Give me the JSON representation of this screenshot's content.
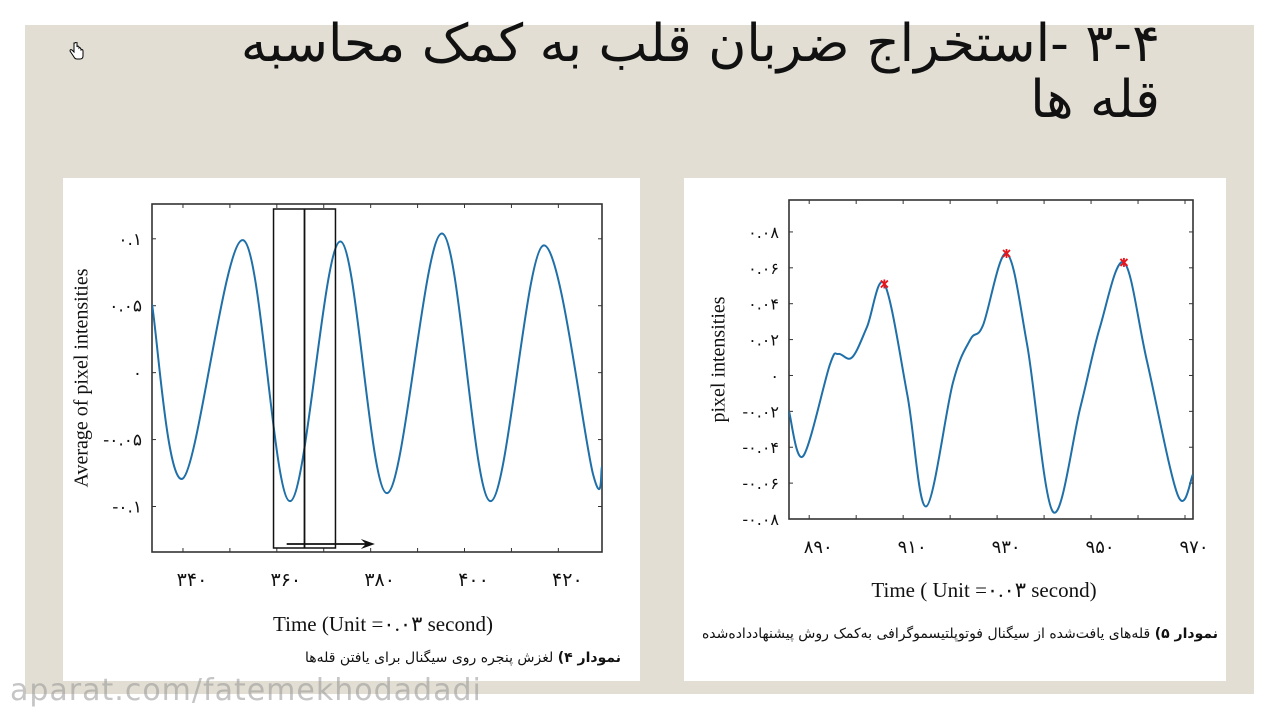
{
  "slide": {
    "title_line1": "۳-۴ -استخراج ضربان قلب به کمک محاسبه",
    "title_line2": "قله ها",
    "watermark": "aparat.com/fatemekhodadadi",
    "colors": {
      "background": "#e2ded3",
      "panel": "#ffffff",
      "line": "#1f6fa8",
      "peak_marker": "#e8141c",
      "axis": "#333333"
    }
  },
  "figure4": {
    "caption_bold": "نمودار ۴)",
    "caption_text": " لغزش پنجره روی سیگنال برای یافتن قله‌ها",
    "xlabel": "Time (Unit =۰.۰۳ second)",
    "ylabel": "Average of pixel intensities"
  },
  "figure5": {
    "caption_bold": "نمودار ۵)",
    "caption_text": " قله‌های یافت‌شده از سیگنال فوتوپلتیسموگرافی به‌کمک روش پیشنهادداده‌شده",
    "xlabel": "Time ( Unit =۰.۰۳ second)",
    "ylabel": "pixel intensities"
  },
  "chart_data": [
    {
      "type": "line",
      "title": "",
      "xlabel": "Time (Unit =0.03 second)",
      "ylabel": "Average of pixel intensities",
      "xlim": [
        333.4,
        429.3
      ],
      "ylim": [
        -0.134,
        0.126
      ],
      "x_ticks": [
        340,
        350,
        360,
        370,
        380,
        390,
        400,
        410,
        420
      ],
      "x_tick_labels": {
        "340": "۳۴۰",
        "360": "۳۶۰",
        "380": "۳۸۰",
        "400": "۴۰۰",
        "420": "۴۲۰"
      },
      "y_ticks": [
        0.1,
        0.05,
        0,
        -0.05,
        -0.1
      ],
      "y_tick_labels": [
        "۰.۱",
        "۰.۰۵",
        "۰",
        "-۰.۰۵",
        "-۰.۱"
      ],
      "grid": false,
      "series": [
        {
          "name": "signal",
          "x": [
            333.4,
            340,
            352.8,
            362.8,
            373.5,
            383.5,
            395.2,
            405.5,
            416.8,
            427.4,
            429.3
          ],
          "y": [
            0.051,
            -0.079,
            0.099,
            -0.096,
            0.098,
            -0.09,
            0.104,
            -0.096,
            0.095,
            -0.076,
            -0.07
          ]
        }
      ],
      "annotations": {
        "sliding_window": {
          "x_start": 359.3,
          "x_mid": 365.9,
          "x_end": 372.5
        },
        "arrow": {
          "x_from": 362.1,
          "x_to": 380.9,
          "direction": "right"
        }
      }
    },
    {
      "type": "line",
      "title": "",
      "xlabel": "Time ( Unit =0.03 second)",
      "ylabel": "pixel intensities",
      "xlim": [
        885.7,
        971.7
      ],
      "ylim": [
        -0.08,
        0.0978
      ],
      "x_ticks": [
        890,
        900,
        910,
        920,
        930,
        940,
        950,
        960,
        970
      ],
      "x_tick_labels": {
        "890": "۸۹۰",
        "910": "۹۱۰",
        "930": "۹۳۰",
        "950": "۹۵۰",
        "970": "۹۷۰"
      },
      "y_ticks": [
        0.08,
        0.06,
        0.04,
        0.02,
        0,
        -0.02,
        -0.04,
        -0.06,
        -0.08
      ],
      "y_tick_labels": [
        "۰.۰۸",
        "۰.۰۶",
        "۰.۰۴",
        "۰.۰۲",
        "۰",
        "-۰.۰۲",
        "-۰.۰۴",
        "-۰.۰۶",
        "-۰.۰۸"
      ],
      "grid": false,
      "series": [
        {
          "name": "signal",
          "x": [
            885.7,
            888.7,
            894.4,
            896.2,
            899.1,
            902.3,
            906.0,
            910.9,
            914.9,
            920.6,
            924.3,
            927.0,
            932.0,
            936.4,
            941.9,
            947.7,
            951.9,
            957.0,
            961.9,
            968.5,
            971.7
          ],
          "y": [
            -0.02,
            -0.045,
            0.006,
            0.012,
            0.01,
            0.027,
            0.051,
            -0.011,
            -0.073,
            -0.004,
            0.02,
            0.028,
            0.068,
            0.017,
            -0.076,
            -0.018,
            0.027,
            0.063,
            0.008,
            -0.067,
            -0.055
          ]
        },
        {
          "name": "detected peaks",
          "marker": "*",
          "x": [
            906.0,
            932.0,
            957.0
          ],
          "y": [
            0.051,
            0.068,
            0.063
          ]
        }
      ]
    }
  ]
}
